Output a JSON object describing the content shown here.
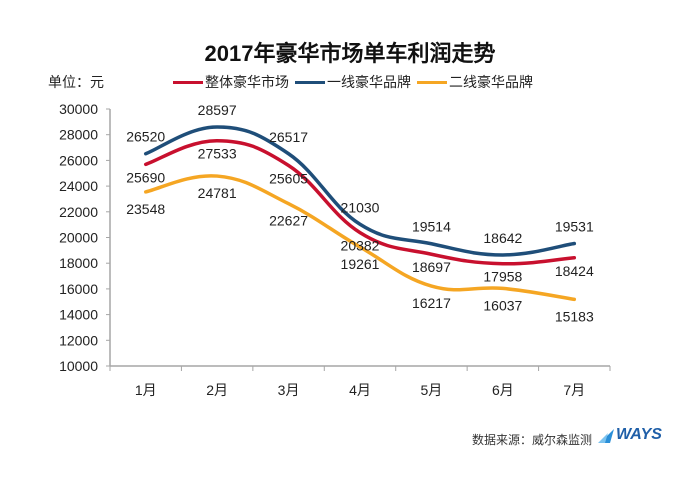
{
  "title": "2017年豪华市场单车利润走势",
  "unit_label": "单位：元",
  "source": "数据来源：威尔森监测",
  "logo_text": "WAYS",
  "colors": {
    "overall": "#c8102e",
    "tier1": "#1f4e79",
    "tier2": "#f5a623",
    "axis": "#a6a6a6"
  },
  "legend": [
    {
      "label": "整体豪华市场",
      "color": "#c8102e"
    },
    {
      "label": "一线豪华品牌",
      "color": "#1f4e79"
    },
    {
      "label": "二线豪华品牌",
      "color": "#f5a623"
    }
  ],
  "chart_data": {
    "type": "line",
    "title": "2017年豪华市场单车利润走势",
    "xlabel": "",
    "ylabel": "单位：元",
    "categories": [
      "1月",
      "2月",
      "3月",
      "4月",
      "5月",
      "6月",
      "7月"
    ],
    "series": [
      {
        "name": "整体豪华市场",
        "color": "#c8102e",
        "values": [
          25690,
          27533,
          25605,
          20382,
          18697,
          17958,
          18424
        ]
      },
      {
        "name": "一线豪华品牌",
        "color": "#1f4e79",
        "values": [
          26520,
          28597,
          26517,
          21030,
          19514,
          18642,
          19531
        ]
      },
      {
        "name": "二线豪华品牌",
        "color": "#f5a623",
        "values": [
          23548,
          24781,
          22627,
          19261,
          16217,
          16037,
          15183
        ]
      }
    ],
    "ylim": [
      10000,
      30000
    ],
    "yticks": [
      10000,
      12000,
      14000,
      16000,
      18000,
      20000,
      22000,
      24000,
      26000,
      28000,
      30000
    ],
    "grid": false,
    "legend_position": "top",
    "smooth": true
  }
}
